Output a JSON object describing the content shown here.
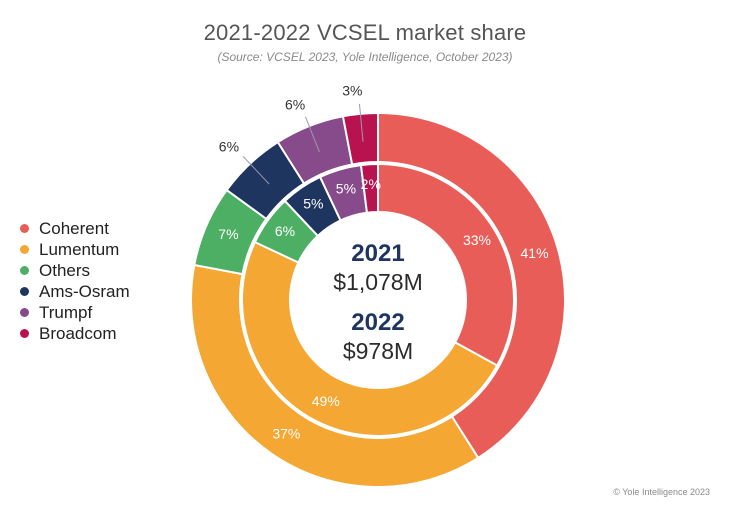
{
  "title": "2021-2022 VCSEL market share",
  "subtitle": "(Source: VCSEL 2023, Yole Intelligence, October 2023)",
  "copyright": "© Yole Intelligence 2023",
  "center": {
    "year_2021": "2021",
    "total_2021": "$1,078M",
    "year_2022": "2022",
    "total_2022": "$978M"
  },
  "colors": {
    "Coherent": "#E85D57",
    "Lumentum": "#F4A733",
    "Others": "#4CAF64",
    "Ams-Osram": "#1E3560",
    "Trumpf": "#874A8A",
    "Broadcom": "#B8124F",
    "center_text": "#1E3560"
  },
  "legend": [
    {
      "label": "Coherent",
      "color": "#E85D57"
    },
    {
      "label": "Lumentum",
      "color": "#F4A733"
    },
    {
      "label": "Others",
      "color": "#4CAF64"
    },
    {
      "label": "Ams-Osram",
      "color": "#1E3560"
    },
    {
      "label": "Trumpf",
      "color": "#874A8A"
    },
    {
      "label": "Broadcom",
      "color": "#B8124F"
    }
  ],
  "chart_data": {
    "type": "pie",
    "variant": "nested-donut",
    "categories": [
      "Coherent",
      "Lumentum",
      "Others",
      "Ams-Osram",
      "Trumpf",
      "Broadcom"
    ],
    "series": [
      {
        "name": "2021",
        "ring": "inner",
        "values": [
          33,
          49,
          6,
          5,
          5,
          2
        ]
      },
      {
        "name": "2022",
        "ring": "outer",
        "values": [
          41,
          37,
          7,
          6,
          6,
          3
        ]
      }
    ],
    "labels": {
      "inner": [
        "33%",
        "49%",
        "6%",
        "5%",
        "5%",
        "2%"
      ],
      "outer": [
        "41%",
        "37%",
        "7%",
        "6%",
        "6%",
        "3%"
      ]
    },
    "legend_position": "left"
  }
}
